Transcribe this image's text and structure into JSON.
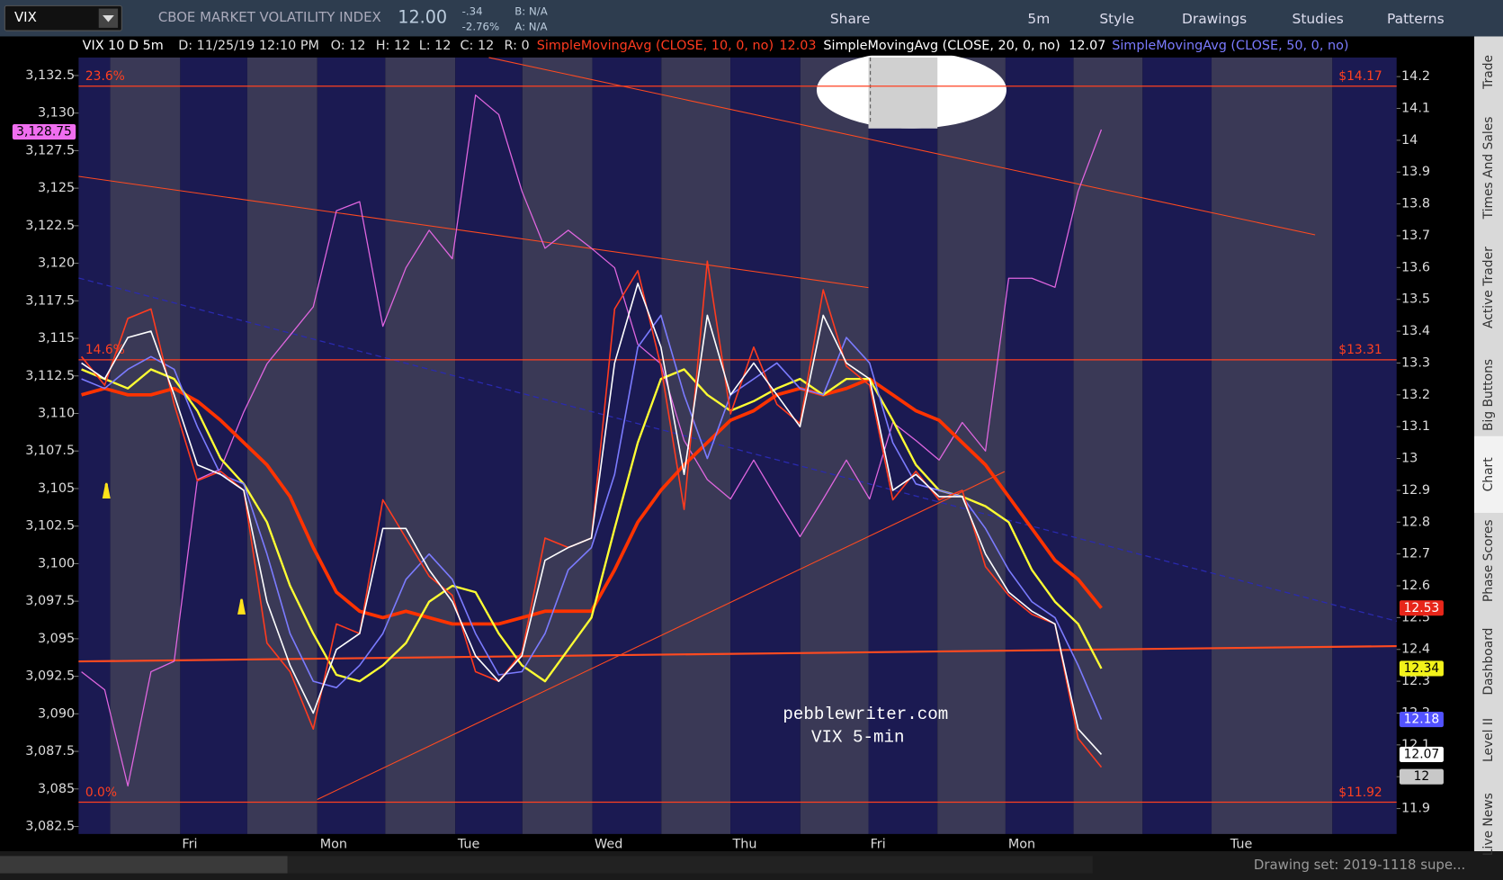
{
  "toolbar": {
    "symbol": "VIX",
    "description": "CBOE MARKET VOLATILITY INDEX",
    "last": "12.00",
    "change": "-.34",
    "change_pct": "-2.76%",
    "bid": "B: N/A",
    "ask": "A: N/A",
    "buttons": [
      "Share",
      "5m",
      "Style",
      "Drawings",
      "Studies",
      "Patterns"
    ]
  },
  "side_tabs": [
    "Trade",
    "Times And Sales",
    "Active Trader",
    "Big Buttons",
    "Chart",
    "Phase Scores",
    "Dashboard",
    "Level II",
    "Live News"
  ],
  "status_bar": "Drawing set: 2019-1118 supe...",
  "chart_data": {
    "type": "line",
    "header": {
      "symbol": "VIX 10 D 5m",
      "date": "D: 11/25/19 12:10 PM",
      "open": "O: 12",
      "high": "H: 12",
      "low": "L: 12",
      "close": "C: 12",
      "range": "R: 0"
    },
    "x_labels": [
      "Fri",
      "Mon",
      "Tue",
      "Wed",
      "Thu",
      "Fri",
      "Mon",
      "Tue"
    ],
    "ylim": [
      3082.0,
      3133.7
    ],
    "yticks": [
      {
        "value": 3082.5,
        "label": "3,082.5"
      },
      {
        "value": 3085,
        "label": "3,085"
      },
      {
        "value": 3087.5,
        "label": "3,087.5"
      },
      {
        "value": 3090,
        "label": "3,090"
      },
      {
        "value": 3092.5,
        "label": "3,092.5"
      },
      {
        "value": 3095,
        "label": "3,095"
      },
      {
        "value": 3097.5,
        "label": "3,097.5"
      },
      {
        "value": 3100,
        "label": "3,100"
      },
      {
        "value": 3102.5,
        "label": "3,102.5"
      },
      {
        "value": 3105,
        "label": "3,105"
      },
      {
        "value": 3107.5,
        "label": "3,107.5"
      },
      {
        "value": 3110,
        "label": "3,110"
      },
      {
        "value": 3112.5,
        "label": "3,112.5"
      },
      {
        "value": 3115,
        "label": "3,115"
      },
      {
        "value": 3117.5,
        "label": "3,117.5"
      },
      {
        "value": 3120,
        "label": "3,120"
      },
      {
        "value": 3122.5,
        "label": "3,122.5"
      },
      {
        "value": 3125,
        "label": "3,125"
      },
      {
        "value": 3127.5,
        "label": "3,127.5"
      },
      {
        "value": 3130,
        "label": "3,130"
      },
      {
        "value": 3132.5,
        "label": "3,132.5"
      }
    ],
    "y2lim": [
      11.82,
      14.26
    ],
    "y2ticks": [
      11.9,
      12,
      12.1,
      12.2,
      12.3,
      12.4,
      12.5,
      12.6,
      12.7,
      12.8,
      12.9,
      13,
      13.1,
      13.2,
      13.3,
      13.4,
      13.5,
      13.6,
      13.7,
      13.8,
      13.9,
      14,
      14.1,
      14.2
    ],
    "series": [
      {
        "name": "SimpleMovingAvg (CLOSE, 10, 0, no)",
        "legend_value": 12.03,
        "color": "#ff3b1f",
        "axis": "y2",
        "values": [
          13.32,
          13.23,
          13.44,
          13.47,
          13.17,
          12.93,
          12.96,
          12.9,
          12.42,
          12.33,
          12.15,
          12.48,
          12.45,
          12.87,
          12.75,
          12.63,
          12.57,
          12.33,
          12.3,
          12.39,
          12.75,
          12.72,
          12.75,
          13.47,
          13.59,
          13.29,
          12.84,
          13.62,
          13.14,
          13.35,
          13.17,
          13.11,
          13.53,
          13.29,
          13.23,
          12.87,
          12.96,
          12.87,
          12.9,
          12.66,
          12.57,
          12.51,
          12.48,
          12.12,
          12.03
        ]
      },
      {
        "name": "SimpleMovingAvg (CLOSE, 20, 0, no)",
        "legend_value": 12.07,
        "color": "#ffffff",
        "axis": "y2",
        "values": [
          13.3,
          13.25,
          13.38,
          13.4,
          13.2,
          12.98,
          12.95,
          12.9,
          12.55,
          12.35,
          12.2,
          12.4,
          12.45,
          12.78,
          12.78,
          12.65,
          12.55,
          12.38,
          12.3,
          12.38,
          12.68,
          12.72,
          12.75,
          13.3,
          13.55,
          13.35,
          12.95,
          13.45,
          13.2,
          13.3,
          13.2,
          13.1,
          13.45,
          13.3,
          13.25,
          12.9,
          12.95,
          12.88,
          12.88,
          12.7,
          12.58,
          12.52,
          12.48,
          12.15,
          12.07
        ]
      },
      {
        "name": "SimpleMovingAvg (CLOSE, 50, 0, no)",
        "color": "#7b7bff",
        "axis": "y2",
        "values": [
          13.25,
          13.22,
          13.28,
          13.32,
          13.28,
          13.1,
          12.95,
          12.92,
          12.7,
          12.45,
          12.3,
          12.28,
          12.35,
          12.45,
          12.62,
          12.7,
          12.62,
          12.45,
          12.32,
          12.33,
          12.45,
          12.65,
          12.72,
          12.95,
          13.35,
          13.45,
          13.2,
          13.0,
          13.2,
          13.25,
          13.3,
          13.22,
          13.2,
          13.38,
          13.3,
          13.05,
          12.92,
          12.9,
          12.88,
          12.78,
          12.65,
          12.55,
          12.5,
          12.35,
          12.18
        ]
      },
      {
        "color": "#ffff33",
        "axis": "y2",
        "values": [
          13.28,
          13.25,
          13.22,
          13.28,
          13.25,
          13.15,
          13.0,
          12.92,
          12.8,
          12.6,
          12.45,
          12.32,
          12.3,
          12.35,
          12.42,
          12.55,
          12.6,
          12.58,
          12.45,
          12.35,
          12.3,
          12.4,
          12.5,
          12.78,
          13.05,
          13.25,
          13.28,
          13.2,
          13.15,
          13.18,
          13.22,
          13.25,
          13.2,
          13.25,
          13.25,
          13.12,
          12.98,
          12.9,
          12.88,
          12.85,
          12.8,
          12.65,
          12.55,
          12.48,
          12.34
        ]
      },
      {
        "color": "#ff3300",
        "axis": "y2",
        "values": [
          13.2,
          13.22,
          13.2,
          13.2,
          13.22,
          13.18,
          13.12,
          13.05,
          12.98,
          12.88,
          12.72,
          12.58,
          12.52,
          12.5,
          12.52,
          12.5,
          12.48,
          12.48,
          12.48,
          12.5,
          12.52,
          12.52,
          12.52,
          12.65,
          12.8,
          12.9,
          12.98,
          13.05,
          13.12,
          13.15,
          13.2,
          13.22,
          13.2,
          13.22,
          13.25,
          13.2,
          13.15,
          13.12,
          13.05,
          12.98,
          12.88,
          12.78,
          12.68,
          12.62,
          12.53
        ]
      },
      {
        "color": "#e066e0",
        "axis": "y",
        "values": [
          3092.8,
          3091.6,
          3085.2,
          3092.8,
          3093.5,
          3105.6,
          3106.3,
          3110.1,
          3113.3,
          3115.2,
          3117.1,
          3123.5,
          3124.1,
          3115.8,
          3119.7,
          3122.2,
          3120.3,
          3131.2,
          3129.9,
          3124.8,
          3121.0,
          3122.2,
          3121.0,
          3119.7,
          3114.6,
          3113.3,
          3108.2,
          3105.6,
          3104.3,
          3106.9,
          3104.3,
          3101.8,
          3104.3,
          3106.9,
          3104.3,
          3109.4,
          3108.2,
          3106.9,
          3109.4,
          3107.5,
          3119.0,
          3119.0,
          3118.4,
          3124.8,
          3128.9
        ]
      }
    ],
    "levels": [
      {
        "value": 14.17,
        "label": "$14.17",
        "fib": "23.6%"
      },
      {
        "value": 13.31,
        "label": "$13.31",
        "fib": "14.6%"
      },
      {
        "value": 11.92,
        "label": "$11.92",
        "fib": "0.0%"
      }
    ],
    "badges": [
      {
        "value": 12.53,
        "color": "#e8261a"
      },
      {
        "value": 12.34,
        "color": "#f2f21a"
      },
      {
        "value": 12.18,
        "color": "#5252ff"
      },
      {
        "value": 12.07,
        "color": "#ffffff"
      },
      {
        "value": 12,
        "color": "#c8c8c8"
      }
    ],
    "left_badge": {
      "value": 3128.75,
      "label": "3,128.75",
      "color": "#f06ef0"
    },
    "watermark": [
      "pebblewriter.com",
      "VIX 5-min"
    ]
  }
}
